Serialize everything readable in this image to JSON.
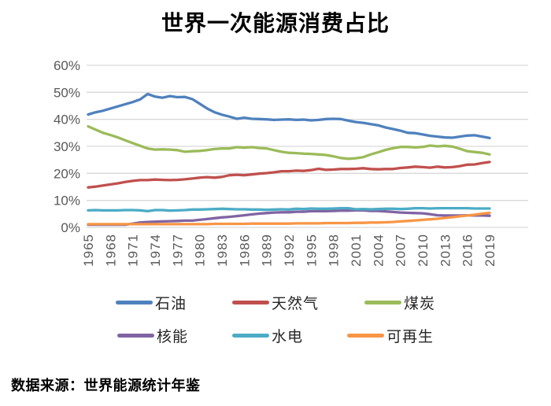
{
  "title": "世界一次能源消费占比",
  "source_note": "数据来源：世界能源统计年鉴",
  "colors": {
    "grid": "#D9D9D9",
    "axis_text": "#595959"
  },
  "axis": {
    "y_tick_labels": [
      "60%",
      "50%",
      "40%",
      "30%",
      "20%",
      "10%",
      "0%"
    ],
    "x_tick_years": [
      1965,
      1968,
      1971,
      1974,
      1977,
      1980,
      1983,
      1986,
      1989,
      1992,
      1995,
      1998,
      2001,
      2004,
      2007,
      2010,
      2013,
      2016,
      2019
    ]
  },
  "chart_data": {
    "type": "line",
    "title": "世界一次能源消费占比",
    "xlabel": "",
    "ylabel": "",
    "ylim": [
      0,
      60
    ],
    "y_tick_step": 10,
    "y_tick_format": "percent",
    "grid": "horizontal",
    "legend_position": "bottom",
    "x": [
      1965,
      1966,
      1967,
      1968,
      1969,
      1970,
      1971,
      1972,
      1973,
      1974,
      1975,
      1976,
      1977,
      1978,
      1979,
      1980,
      1981,
      1982,
      1983,
      1984,
      1985,
      1986,
      1987,
      1988,
      1989,
      1990,
      1991,
      1992,
      1993,
      1994,
      1995,
      1996,
      1997,
      1998,
      1999,
      2000,
      2001,
      2002,
      2003,
      2004,
      2005,
      2006,
      2007,
      2008,
      2009,
      2010,
      2011,
      2012,
      2013,
      2014,
      2015,
      2016,
      2017,
      2018,
      2019
    ],
    "series": [
      {
        "name": "石油",
        "color": "#4F81BD",
        "values": [
          41.8,
          42.6,
          43.2,
          44.0,
          44.8,
          45.6,
          46.4,
          47.4,
          49.4,
          48.4,
          48.0,
          48.6,
          48.2,
          48.3,
          47.5,
          45.8,
          44.0,
          42.6,
          41.7,
          41.0,
          40.2,
          40.6,
          40.2,
          40.1,
          40.0,
          39.8,
          39.9,
          40.0,
          39.8,
          39.9,
          39.6,
          39.8,
          40.1,
          40.2,
          40.1,
          39.5,
          39.0,
          38.7,
          38.2,
          37.8,
          37.0,
          36.4,
          35.8,
          35.0,
          34.9,
          34.4,
          33.9,
          33.6,
          33.3,
          33.2,
          33.6,
          34.0,
          34.1,
          33.6,
          33.1
        ]
      },
      {
        "name": "天然气",
        "color": "#C0504D",
        "values": [
          14.8,
          15.1,
          15.5,
          15.9,
          16.3,
          16.8,
          17.2,
          17.5,
          17.5,
          17.7,
          17.6,
          17.5,
          17.6,
          17.8,
          18.1,
          18.4,
          18.6,
          18.4,
          18.7,
          19.3,
          19.5,
          19.3,
          19.6,
          19.9,
          20.1,
          20.4,
          20.8,
          20.8,
          21.0,
          20.9,
          21.2,
          21.7,
          21.3,
          21.4,
          21.6,
          21.6,
          21.7,
          21.9,
          21.6,
          21.5,
          21.6,
          21.6,
          22.0,
          22.2,
          22.5,
          22.3,
          22.1,
          22.5,
          22.2,
          22.3,
          22.7,
          23.2,
          23.3,
          23.8,
          24.2
        ]
      },
      {
        "name": "煤炭",
        "color": "#9BBB59",
        "values": [
          37.4,
          36.2,
          35.0,
          34.2,
          33.3,
          32.2,
          31.2,
          30.2,
          29.2,
          28.8,
          28.9,
          28.8,
          28.6,
          28.0,
          28.2,
          28.3,
          28.6,
          29.0,
          29.2,
          29.2,
          29.7,
          29.5,
          29.7,
          29.4,
          29.2,
          28.6,
          28.0,
          27.6,
          27.5,
          27.3,
          27.2,
          27.0,
          26.8,
          26.3,
          25.7,
          25.4,
          25.6,
          26.0,
          27.0,
          27.8,
          28.7,
          29.3,
          29.8,
          29.8,
          29.6,
          29.8,
          30.3,
          30.0,
          30.2,
          29.9,
          29.1,
          28.2,
          27.9,
          27.6,
          27.0
        ]
      },
      {
        "name": "核能",
        "color": "#8064A2",
        "values": [
          1.0,
          1.0,
          1.0,
          1.0,
          1.0,
          1.0,
          1.4,
          1.8,
          2.0,
          2.1,
          2.2,
          2.3,
          2.4,
          2.5,
          2.5,
          2.8,
          3.1,
          3.4,
          3.7,
          3.9,
          4.2,
          4.5,
          4.8,
          5.1,
          5.3,
          5.5,
          5.6,
          5.6,
          5.8,
          5.8,
          6.0,
          6.0,
          6.0,
          6.1,
          6.2,
          6.2,
          6.3,
          6.3,
          6.1,
          6.1,
          5.9,
          5.7,
          5.5,
          5.4,
          5.3,
          5.2,
          4.9,
          4.5,
          4.4,
          4.4,
          4.4,
          4.5,
          4.4,
          4.4,
          4.3
        ]
      },
      {
        "name": "水电",
        "color": "#4BACC6",
        "values": [
          6.3,
          6.4,
          6.3,
          6.3,
          6.3,
          6.4,
          6.4,
          6.3,
          6.0,
          6.4,
          6.4,
          6.2,
          6.3,
          6.4,
          6.6,
          6.6,
          6.7,
          6.8,
          6.9,
          6.8,
          6.7,
          6.7,
          6.6,
          6.6,
          6.5,
          6.6,
          6.7,
          6.6,
          6.9,
          6.8,
          7.0,
          6.9,
          6.9,
          7.0,
          7.1,
          7.1,
          6.7,
          6.8,
          6.7,
          6.8,
          6.9,
          6.9,
          6.8,
          6.9,
          7.1,
          7.1,
          7.0,
          7.1,
          7.1,
          7.1,
          7.1,
          7.1,
          7.0,
          7.0,
          7.0
        ]
      },
      {
        "name": "可再生",
        "color": "#F79646",
        "values": [
          1.2,
          1.2,
          1.2,
          1.2,
          1.2,
          1.2,
          1.2,
          1.2,
          1.2,
          1.2,
          1.2,
          1.2,
          1.2,
          1.2,
          1.2,
          1.2,
          1.2,
          1.3,
          1.3,
          1.3,
          1.3,
          1.3,
          1.4,
          1.4,
          1.4,
          1.4,
          1.4,
          1.4,
          1.5,
          1.5,
          1.5,
          1.5,
          1.6,
          1.6,
          1.6,
          1.6,
          1.7,
          1.7,
          1.8,
          1.8,
          1.9,
          2.0,
          2.2,
          2.4,
          2.6,
          2.8,
          3.0,
          3.2,
          3.5,
          3.8,
          4.1,
          4.4,
          4.7,
          5.1,
          5.4
        ]
      }
    ]
  }
}
